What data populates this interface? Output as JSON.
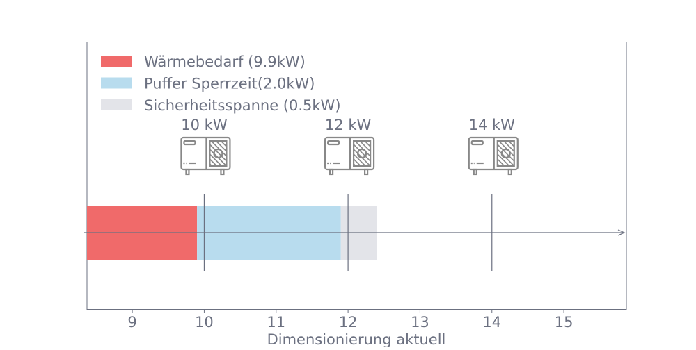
{
  "chart_data": {
    "type": "bar",
    "orientation": "horizontal-stacked",
    "xlabel": "Dimensionierung aktuell",
    "xlim": [
      8.37,
      15.87
    ],
    "xticks": [
      9,
      10,
      11,
      12,
      13,
      14,
      15
    ],
    "grid": false,
    "legend_position": "top-left",
    "series": [
      {
        "name": "Wärmebedarf (9.9kW)",
        "start": 8.37,
        "end": 9.9,
        "color": "#f06a6a"
      },
      {
        "name": "Puffer Sperrzeit(2.0kW)",
        "start": 9.9,
        "end": 11.9,
        "color": "#b8dcee"
      },
      {
        "name": "Sicherheitsspanne (0.5kW)",
        "start": 11.9,
        "end": 12.4,
        "color": "#e3e4e9"
      }
    ],
    "markers": [
      {
        "x": 10,
        "label": "10 kW",
        "icon": "heat-pump-icon"
      },
      {
        "x": 12,
        "label": "12 kW",
        "icon": "heat-pump-icon"
      },
      {
        "x": 14,
        "label": "14 kW",
        "icon": "heat-pump-icon"
      }
    ],
    "text_color": "#6b7080",
    "axis_color": "#6b7080"
  }
}
